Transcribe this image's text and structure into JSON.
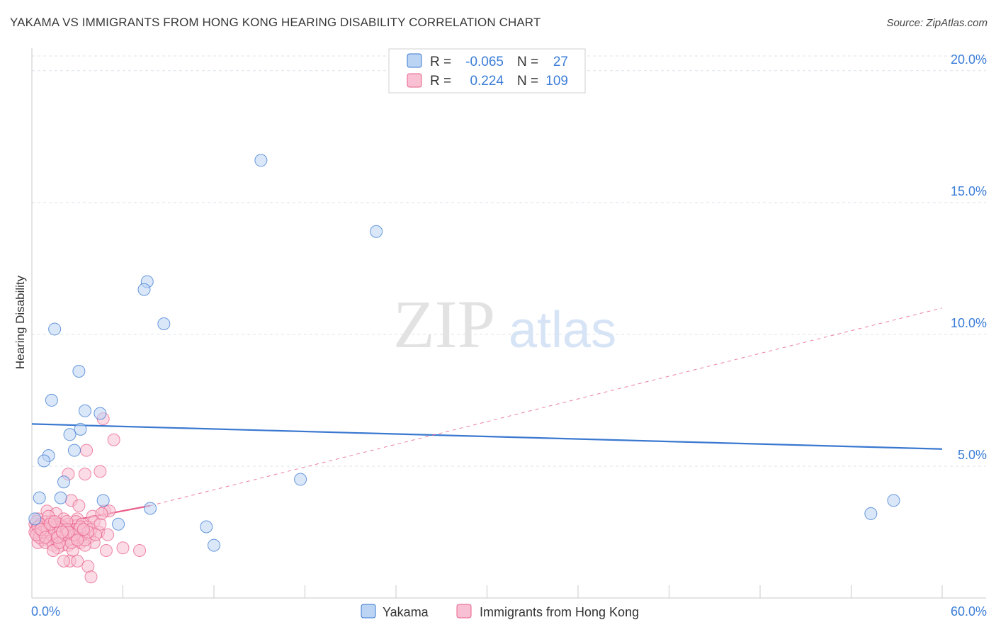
{
  "title": "YAKAMA VS IMMIGRANTS FROM HONG KONG HEARING DISABILITY CORRELATION CHART",
  "source": "Source: ZipAtlas.com",
  "watermark": {
    "zip": "ZIP",
    "atlas": "atlas"
  },
  "colors": {
    "yakama": "#3a78d0",
    "yakama_fill": "#bcd4f4",
    "hongkong": "#e8608a",
    "hongkong_fill": "#f8c0d2",
    "axis_text": "#3b7dd8",
    "grid": "#dde3ea"
  },
  "legend": {
    "row1": {
      "r_label": "R =",
      "r_value": "-0.065",
      "n_label": "N =",
      "n_value": "27"
    },
    "row2": {
      "r_label": "R =",
      "r_value": "0.224",
      "n_label": "N =",
      "n_value": "109"
    }
  },
  "chart_data": {
    "type": "scatter",
    "title": "YAKAMA VS IMMIGRANTS FROM HONG KONG HEARING DISABILITY CORRELATION CHART",
    "xlabel": "",
    "ylabel": "Hearing Disability",
    "xlim": [
      0,
      60
    ],
    "ylim": [
      0,
      20.8
    ],
    "x_tick_labels": [
      "0.0%",
      "60.0%"
    ],
    "y_ticks": [
      5,
      10,
      15,
      20
    ],
    "y_tick_labels": [
      "5.0%",
      "10.0%",
      "15.0%",
      "20.0%"
    ],
    "grid": "horizontal dashed",
    "legend_position": "top-center",
    "series": [
      {
        "name": "Yakama",
        "trend": {
          "x": [
            0,
            60
          ],
          "y": [
            6.6,
            5.65
          ],
          "style": "solid"
        },
        "points": [
          [
            15.1,
            16.6
          ],
          [
            22.7,
            13.9
          ],
          [
            7.6,
            12.0
          ],
          [
            7.4,
            11.7
          ],
          [
            8.7,
            10.4
          ],
          [
            1.5,
            10.2
          ],
          [
            3.1,
            8.6
          ],
          [
            1.3,
            7.5
          ],
          [
            3.5,
            7.1
          ],
          [
            4.5,
            7.0
          ],
          [
            3.2,
            6.4
          ],
          [
            2.5,
            6.2
          ],
          [
            1.1,
            5.4
          ],
          [
            2.8,
            5.6
          ],
          [
            0.8,
            5.2
          ],
          [
            2.1,
            4.4
          ],
          [
            17.7,
            4.5
          ],
          [
            0.5,
            3.8
          ],
          [
            1.9,
            3.8
          ],
          [
            4.7,
            3.7
          ],
          [
            7.8,
            3.4
          ],
          [
            5.7,
            2.8
          ],
          [
            11.5,
            2.7
          ],
          [
            12.0,
            2.0
          ],
          [
            55.3,
            3.2
          ],
          [
            56.8,
            3.7
          ],
          [
            0.2,
            3.0
          ]
        ]
      },
      {
        "name": "Immigrants from Hong Kong",
        "trend": {
          "x": [
            0,
            7.8
          ],
          "y": [
            2.65,
            3.5
          ],
          "style": "solid",
          "extension": {
            "x": [
              7.8,
              60
            ],
            "y": [
              3.5,
              11.0
            ],
            "style": "dashed"
          }
        },
        "points": [
          [
            4.7,
            6.8
          ],
          [
            5.4,
            6.0
          ],
          [
            3.6,
            5.6
          ],
          [
            4.5,
            4.8
          ],
          [
            2.4,
            4.7
          ],
          [
            3.5,
            4.7
          ],
          [
            2.6,
            3.7
          ],
          [
            3.1,
            3.5
          ],
          [
            4.8,
            3.3
          ],
          [
            5.1,
            3.3
          ],
          [
            1.0,
            3.3
          ],
          [
            1.6,
            3.2
          ],
          [
            2.1,
            3.0
          ],
          [
            3.0,
            3.0
          ],
          [
            4.0,
            3.1
          ],
          [
            0.4,
            3.0
          ],
          [
            0.9,
            2.9
          ],
          [
            1.3,
            2.9
          ],
          [
            1.8,
            2.8
          ],
          [
            2.4,
            2.8
          ],
          [
            2.9,
            2.9
          ],
          [
            3.3,
            2.8
          ],
          [
            4.1,
            2.9
          ],
          [
            0.2,
            2.8
          ],
          [
            0.6,
            2.7
          ],
          [
            1.1,
            2.7
          ],
          [
            1.5,
            2.6
          ],
          [
            2.0,
            2.7
          ],
          [
            2.6,
            2.6
          ],
          [
            3.6,
            2.7
          ],
          [
            0.3,
            2.6
          ],
          [
            0.8,
            2.5
          ],
          [
            1.2,
            2.5
          ],
          [
            1.7,
            2.5
          ],
          [
            2.2,
            2.5
          ],
          [
            2.8,
            2.5
          ],
          [
            3.4,
            2.5
          ],
          [
            4.4,
            2.5
          ],
          [
            5.0,
            2.4
          ],
          [
            0.5,
            2.4
          ],
          [
            1.0,
            2.4
          ],
          [
            1.4,
            2.3
          ],
          [
            1.9,
            2.4
          ],
          [
            2.5,
            2.3
          ],
          [
            3.0,
            2.3
          ],
          [
            3.8,
            2.3
          ],
          [
            0.7,
            2.2
          ],
          [
            1.2,
            2.2
          ],
          [
            1.6,
            2.2
          ],
          [
            2.1,
            2.2
          ],
          [
            2.7,
            2.2
          ],
          [
            3.2,
            2.1
          ],
          [
            4.1,
            2.1
          ],
          [
            0.4,
            2.1
          ],
          [
            0.9,
            2.1
          ],
          [
            1.4,
            2.0
          ],
          [
            2.0,
            2.0
          ],
          [
            2.4,
            2.0
          ],
          [
            3.5,
            2.0
          ],
          [
            1.7,
            1.9
          ],
          [
            2.7,
            1.8
          ],
          [
            1.4,
            1.8
          ],
          [
            4.9,
            1.8
          ],
          [
            6.0,
            1.9
          ],
          [
            7.1,
            1.8
          ],
          [
            2.5,
            1.4
          ],
          [
            2.1,
            1.4
          ],
          [
            3.0,
            1.4
          ],
          [
            3.7,
            1.2
          ],
          [
            3.9,
            0.8
          ],
          [
            0.3,
            2.9
          ],
          [
            0.6,
            2.8
          ],
          [
            1.1,
            3.1
          ],
          [
            1.6,
            2.7
          ],
          [
            2.3,
            2.9
          ],
          [
            2.9,
            2.6
          ],
          [
            3.3,
            2.4
          ],
          [
            3.9,
            2.6
          ],
          [
            4.5,
            2.8
          ],
          [
            0.2,
            2.5
          ],
          [
            0.5,
            2.3
          ],
          [
            0.8,
            2.6
          ],
          [
            1.3,
            2.4
          ],
          [
            1.8,
            2.1
          ],
          [
            2.2,
            2.4
          ],
          [
            2.6,
            2.1
          ],
          [
            3.1,
            2.6
          ],
          [
            3.5,
            2.2
          ],
          [
            4.2,
            2.4
          ],
          [
            0.4,
            2.7
          ],
          [
            0.7,
            2.5
          ],
          [
            1.0,
            2.6
          ],
          [
            1.5,
            2.5
          ],
          [
            1.9,
            2.6
          ],
          [
            2.3,
            2.6
          ],
          [
            2.8,
            2.4
          ],
          [
            3.2,
            2.7
          ],
          [
            3.7,
            2.5
          ],
          [
            4.6,
            3.2
          ],
          [
            0.3,
            2.4
          ],
          [
            0.6,
            2.6
          ],
          [
            1.2,
            2.8
          ],
          [
            1.7,
            2.3
          ],
          [
            2.4,
            2.5
          ],
          [
            3.0,
            2.2
          ],
          [
            3.4,
            2.6
          ],
          [
            0.9,
            2.3
          ],
          [
            1.5,
            2.9
          ],
          [
            2.0,
            2.5
          ]
        ]
      }
    ]
  }
}
